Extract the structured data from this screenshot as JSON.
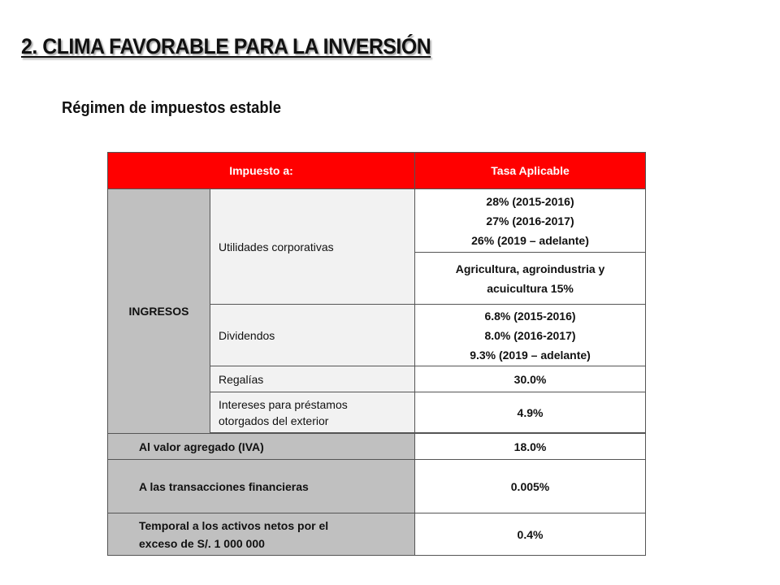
{
  "title": "2.  CLIMA FAVORABLE PARA LA INVERSIÓN",
  "subtitle": "Régimen de impuestos estable",
  "table": {
    "headers": [
      "Impuesto a:",
      "Tasa Aplicable"
    ],
    "ingresos_label": "INGRESOS",
    "utilidades": {
      "label": "Utilidades corporativas",
      "rates": [
        "28% (2015-2016)",
        "27% (2016-2017)",
        "26% (2019 – adelante)"
      ],
      "agro": [
        "Agricultura, agroindustria y",
        "acuicultura 15%"
      ]
    },
    "dividendos": {
      "label": "Dividendos",
      "rates": [
        "6.8% (2015-2016)",
        "8.0% (2016-2017)",
        "9.3% (2019 – adelante)"
      ]
    },
    "regalias": {
      "label": "Regalías",
      "rate": "30.0%"
    },
    "intereses": {
      "label": [
        "Intereses para préstamos",
        "otorgados del exterior"
      ],
      "rate": "4.9%"
    },
    "iva": {
      "label": "Al valor agregado (IVA)",
      "rate": "18.0%"
    },
    "transacciones": {
      "label": "A las transacciones financieras",
      "rate": "0.005%"
    },
    "temporal": {
      "label": [
        "Temporal a los activos netos por el",
        "exceso de S/. 1 000 000"
      ],
      "rate": "0.4%"
    }
  }
}
